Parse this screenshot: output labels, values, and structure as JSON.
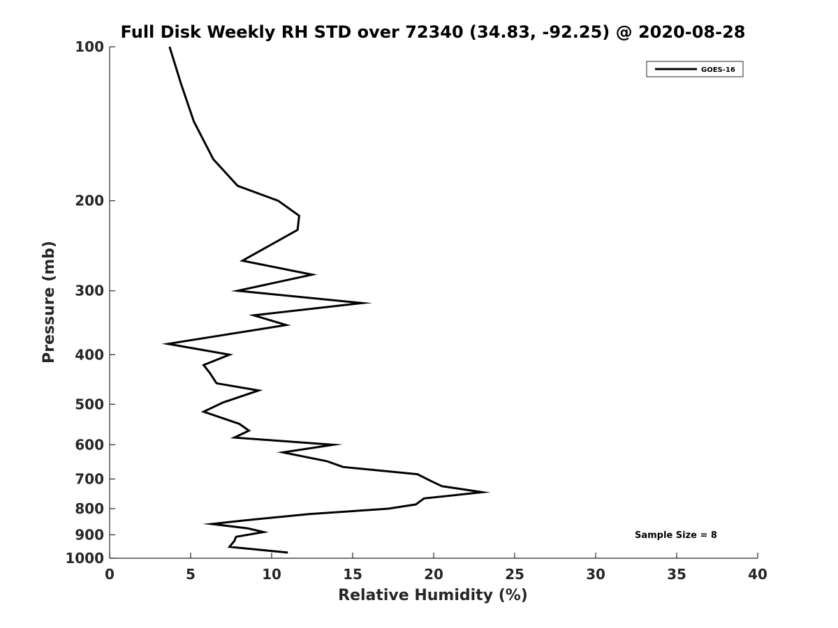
{
  "chart_data": {
    "type": "line",
    "title": "Full Disk Weekly RH STD over 72340 (34.83, -92.25) @ 2020-08-28",
    "xlabel": "Relative Humidity (%)",
    "ylabel": "Pressure (mb)",
    "xlim": [
      0,
      40
    ],
    "ylim": [
      100,
      1000
    ],
    "y_scale": "log",
    "y_reversed": true,
    "x_ticks": [
      0,
      5,
      10,
      15,
      20,
      25,
      30,
      35,
      40
    ],
    "y_ticks": [
      100,
      200,
      300,
      400,
      500,
      600,
      700,
      800,
      900,
      1000
    ],
    "grid": false,
    "legend_position": "top-right",
    "annotation": "Sample Size = 8",
    "series": [
      {
        "name": "GOES-16",
        "color": "#000000",
        "points": [
          [
            3.7,
            100
          ],
          [
            4.4,
            118
          ],
          [
            5.2,
            140
          ],
          [
            6.4,
            166
          ],
          [
            7.9,
            187
          ],
          [
            10.4,
            200
          ],
          [
            11.7,
            214
          ],
          [
            11.6,
            228
          ],
          [
            8.2,
            262
          ],
          [
            12.5,
            279
          ],
          [
            7.9,
            300
          ],
          [
            15.6,
            317
          ],
          [
            8.9,
            335
          ],
          [
            10.9,
            350
          ],
          [
            3.6,
            381
          ],
          [
            7.4,
            400
          ],
          [
            5.8,
            419
          ],
          [
            6.2,
            435
          ],
          [
            6.6,
            455
          ],
          [
            9.2,
            470
          ],
          [
            7.0,
            496
          ],
          [
            5.8,
            517
          ],
          [
            8.0,
            546
          ],
          [
            8.6,
            563
          ],
          [
            7.7,
            581
          ],
          [
            13.8,
            600
          ],
          [
            10.7,
            621
          ],
          [
            13.4,
            646
          ],
          [
            14.4,
            663
          ],
          [
            19.0,
            685
          ],
          [
            19.7,
            703
          ],
          [
            20.5,
            723
          ],
          [
            23.0,
            743
          ],
          [
            19.4,
            764
          ],
          [
            18.9,
            785
          ],
          [
            17.2,
            800
          ],
          [
            12.3,
            820
          ],
          [
            8.4,
            843
          ],
          [
            6.3,
            857
          ],
          [
            8.5,
            874
          ],
          [
            9.5,
            889
          ],
          [
            7.8,
            908
          ],
          [
            7.7,
            925
          ],
          [
            7.4,
            950
          ],
          [
            11.0,
            975
          ]
        ]
      }
    ]
  }
}
